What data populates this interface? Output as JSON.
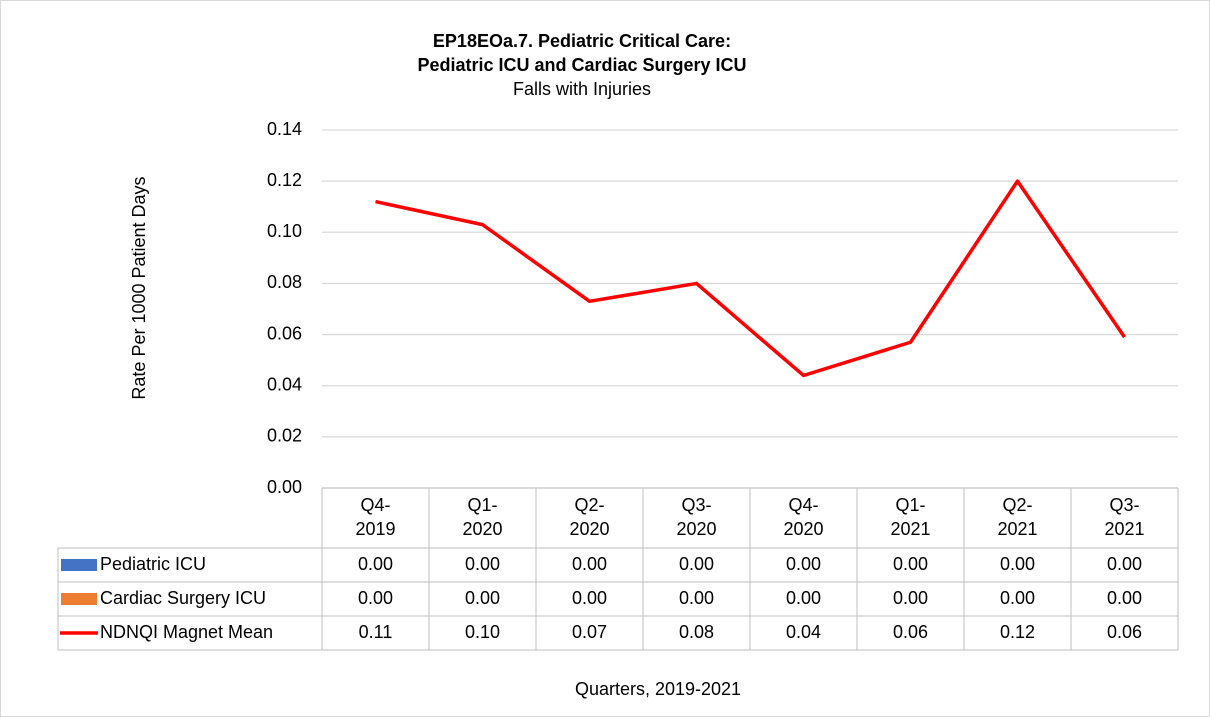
{
  "chart_data": {
    "type": "line",
    "title": "EP18EOa.7. Pediatric Critical Care:",
    "subtitle_bold": "Pediatric ICU and Cardiac Surgery ICU",
    "subtitle": "Falls with Injuries",
    "y_label": "Rate Per 1000 Patient Days",
    "x_label": "Quarters, 2019-2021",
    "categories": [
      "Q4-\n2019",
      "Q1-\n2020",
      "Q2-\n2020",
      "Q3-\n2020",
      "Q4-\n2020",
      "Q1-\n2021",
      "Q2-\n2021",
      "Q3-\n2021"
    ],
    "series": [
      {
        "name": "Pediatric ICU",
        "color": "#4472c4",
        "values": [
          0,
          0,
          0,
          0,
          0,
          0,
          0,
          0
        ],
        "value_labels": [
          "0.00",
          "0.00",
          "0.00",
          "0.00",
          "0.00",
          "0.00",
          "0.00",
          "0.00"
        ]
      },
      {
        "name": "Cardiac Surgery ICU",
        "color": "#ed7d31",
        "values": [
          0,
          0,
          0,
          0,
          0,
          0,
          0,
          0
        ],
        "value_labels": [
          "0.00",
          "0.00",
          "0.00",
          "0.00",
          "0.00",
          "0.00",
          "0.00",
          "0.00"
        ]
      },
      {
        "name": "NDNQI Magnet Mean",
        "color": "#ff0000",
        "values": [
          0.112,
          0.103,
          0.073,
          0.08,
          0.044,
          0.057,
          0.12,
          0.059
        ],
        "value_labels": [
          "0.11",
          "0.10",
          "0.07",
          "0.08",
          "0.04",
          "0.06",
          "0.12",
          "0.06"
        ]
      }
    ],
    "ylim": [
      0,
      0.14
    ],
    "yticks": [
      {
        "value": 0,
        "label": "0.00"
      },
      0.02,
      0.04,
      0.06,
      0.08,
      {
        "value": 0.1,
        "label": "0.10"
      },
      0.12,
      0.14
    ],
    "grid": true
  }
}
